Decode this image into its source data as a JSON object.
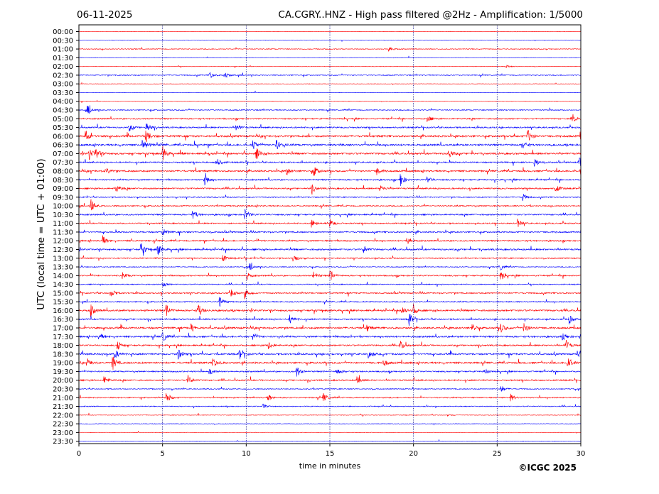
{
  "header": {
    "date": "06-11-2025",
    "title": "CA.CGRY..HNZ - High pass filtered @2Hz - Amplification: 1/5000"
  },
  "footer": {
    "copyright": "©ICGC 2025"
  },
  "chart_data": {
    "type": "line",
    "xlabel": "time in minutes",
    "ylabel": "UTC (local time = UTC + 01:00)",
    "xlim": [
      0,
      30
    ],
    "x_ticks": [
      "0",
      "5",
      "10",
      "15",
      "20",
      "25",
      "30"
    ],
    "x_tick_values": [
      0,
      5,
      10,
      15,
      20,
      25,
      30
    ],
    "grid": "vertical dotted lines at 5-minute intervals",
    "colors": {
      "even_rows": "#ff0000",
      "odd_rows": "#0000ff"
    },
    "rows": [
      "00:00",
      "00:30",
      "01:00",
      "01:30",
      "02:00",
      "02:30",
      "03:00",
      "03:30",
      "04:00",
      "04:30",
      "05:00",
      "05:30",
      "06:00",
      "06:30",
      "07:00",
      "07:30",
      "08:00",
      "08:30",
      "09:00",
      "09:30",
      "10:00",
      "10:30",
      "11:00",
      "11:30",
      "12:00",
      "12:30",
      "13:00",
      "13:30",
      "14:00",
      "14:30",
      "15:00",
      "15:30",
      "16:00",
      "16:30",
      "17:00",
      "17:30",
      "18:00",
      "18:30",
      "19:00",
      "19:30",
      "20:00",
      "20:30",
      "21:00",
      "21:30",
      "22:00",
      "22:30",
      "23:00",
      "23:30"
    ],
    "activity": [
      0.05,
      0.05,
      0.25,
      0.05,
      0.08,
      0.35,
      0.05,
      0.05,
      0.08,
      0.35,
      0.55,
      0.6,
      0.85,
      0.85,
      0.8,
      0.6,
      0.75,
      0.6,
      0.6,
      0.4,
      0.5,
      0.6,
      0.5,
      0.6,
      0.6,
      0.7,
      0.45,
      0.3,
      0.55,
      0.35,
      0.55,
      0.45,
      0.75,
      0.6,
      0.8,
      0.75,
      0.6,
      0.75,
      0.75,
      0.55,
      0.6,
      0.3,
      0.45,
      0.3,
      0.15,
      0.08,
      0.05,
      0.05
    ],
    "events": [
      [],
      [],
      [
        [
          18.5,
          0.4
        ]
      ],
      [],
      [
        [
          25.5,
          0.3
        ]
      ],
      [
        [
          7.8,
          0.6
        ],
        [
          8.7,
          0.6
        ]
      ],
      [],
      [],
      [],
      [
        [
          0.5,
          0.7
        ]
      ],
      [
        [
          20.8,
          0.5
        ],
        [
          29.5,
          0.5
        ]
      ],
      [
        [
          3.0,
          0.5
        ],
        [
          4.0,
          0.8
        ],
        [
          9.4,
          0.5
        ]
      ],
      [
        [
          0.4,
          1.0
        ],
        [
          4.0,
          1.0
        ],
        [
          26.8,
          1.0
        ],
        [
          30.0,
          1.0
        ]
      ],
      [
        [
          3.8,
          0.9
        ],
        [
          10.4,
          0.7
        ],
        [
          11.8,
          0.7
        ],
        [
          26.5,
          0.6
        ]
      ],
      [
        [
          0.6,
          0.9
        ],
        [
          1.0,
          0.8
        ],
        [
          5.0,
          1.0
        ],
        [
          10.6,
          0.8
        ],
        [
          22.1,
          0.7
        ]
      ],
      [
        [
          8.2,
          0.8
        ],
        [
          27.2,
          0.7
        ],
        [
          29.9,
          0.8
        ]
      ],
      [
        [
          1.6,
          0.5
        ],
        [
          12.4,
          0.6
        ],
        [
          14.0,
          0.9
        ],
        [
          17.8,
          0.6
        ],
        [
          30.0,
          1.0
        ]
      ],
      [
        [
          7.5,
          0.8
        ],
        [
          19.2,
          1.0
        ],
        [
          20.8,
          0.5
        ]
      ],
      [
        [
          2.2,
          0.6
        ],
        [
          13.9,
          0.6
        ],
        [
          18.0,
          0.5
        ],
        [
          28.5,
          0.6
        ]
      ],
      [
        [
          26.5,
          0.6
        ]
      ],
      [
        [
          0.7,
          1.0
        ]
      ],
      [
        [
          6.8,
          0.7
        ],
        [
          9.9,
          0.8
        ]
      ],
      [
        [
          13.9,
          0.6
        ],
        [
          15.0,
          0.6
        ],
        [
          26.2,
          0.6
        ]
      ],
      [
        [
          5.0,
          0.5
        ],
        [
          30.0,
          0.5
        ]
      ],
      [
        [
          1.4,
          0.8
        ],
        [
          19.6,
          0.7
        ]
      ],
      [
        [
          3.7,
          0.9
        ],
        [
          4.7,
          0.9
        ],
        [
          17.0,
          0.5
        ]
      ],
      [
        [
          8.6,
          0.5
        ],
        [
          12.8,
          0.7
        ]
      ],
      [
        [
          10.2,
          0.5
        ],
        [
          25.2,
          0.4
        ]
      ],
      [
        [
          2.6,
          0.5
        ],
        [
          10.0,
          0.6
        ],
        [
          14.0,
          0.6
        ],
        [
          15.0,
          0.8
        ],
        [
          25.2,
          0.7
        ]
      ],
      [
        [
          5.0,
          0.4
        ]
      ],
      [
        [
          1.9,
          0.7
        ],
        [
          9.1,
          0.5
        ],
        [
          9.9,
          0.8
        ]
      ],
      [
        [
          8.4,
          0.8
        ]
      ],
      [
        [
          0.7,
          0.8
        ],
        [
          5.2,
          0.8
        ],
        [
          7.1,
          1.0
        ],
        [
          19.3,
          0.6
        ],
        [
          20.0,
          0.6
        ]
      ],
      [
        [
          12.6,
          0.6
        ],
        [
          19.7,
          1.0
        ],
        [
          29.3,
          0.6
        ]
      ],
      [
        [
          6.7,
          0.6
        ],
        [
          17.2,
          0.5
        ],
        [
          23.5,
          0.6
        ],
        [
          25.2,
          0.7
        ],
        [
          26.6,
          0.7
        ]
      ],
      [
        [
          1.2,
          0.6
        ],
        [
          5.0,
          0.7
        ],
        [
          10.4,
          0.5
        ],
        [
          28.9,
          0.6
        ]
      ],
      [
        [
          2.3,
          0.8
        ],
        [
          11.3,
          0.6
        ],
        [
          19.2,
          0.7
        ],
        [
          29.1,
          0.8
        ]
      ],
      [
        [
          2.1,
          0.8
        ],
        [
          5.9,
          0.8
        ],
        [
          9.6,
          0.8
        ],
        [
          17.3,
          0.7
        ],
        [
          29.8,
          0.6
        ]
      ],
      [
        [
          0.5,
          0.6
        ],
        [
          2.0,
          1.0
        ],
        [
          8.0,
          0.8
        ],
        [
          18.2,
          0.6
        ],
        [
          29.2,
          1.0
        ]
      ],
      [
        [
          7.8,
          0.6
        ],
        [
          13.0,
          0.8
        ],
        [
          15.4,
          0.6
        ],
        [
          24.2,
          0.5
        ]
      ],
      [
        [
          1.5,
          0.6
        ],
        [
          6.5,
          0.7
        ],
        [
          16.6,
          0.6
        ]
      ],
      [
        [
          25.2,
          0.6
        ]
      ],
      [
        [
          5.2,
          0.9
        ],
        [
          11.3,
          0.6
        ],
        [
          14.6,
          0.6
        ],
        [
          25.8,
          0.5
        ]
      ],
      [
        [
          11.0,
          0.3
        ]
      ],
      [
        [
          22.0,
          0.2
        ]
      ],
      [],
      [],
      []
    ]
  }
}
